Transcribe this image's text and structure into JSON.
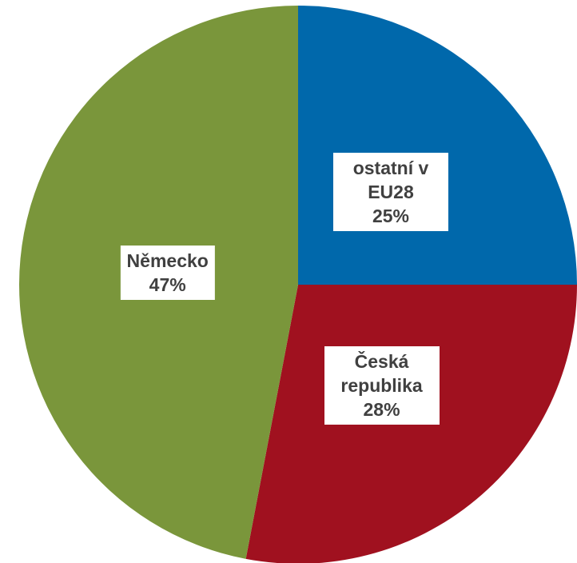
{
  "chart_data": {
    "type": "pie",
    "categories": [
      "ostatní v EU28",
      "Česká republika",
      "Německo"
    ],
    "values": [
      25,
      28,
      47
    ],
    "value_labels": [
      "25%",
      "28%",
      "47%"
    ],
    "colors": [
      "#0068ab",
      "#a0111f",
      "#7a963b"
    ]
  }
}
